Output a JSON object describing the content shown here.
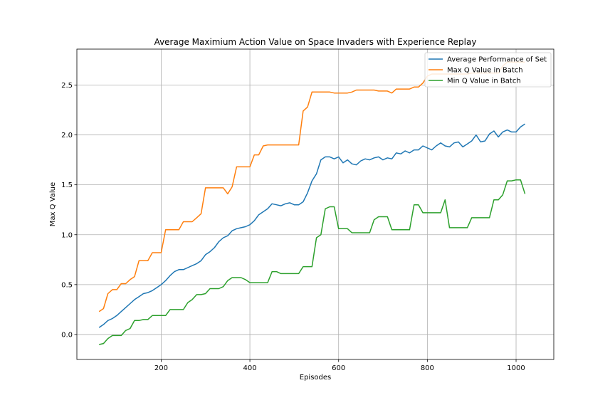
{
  "chart_data": {
    "type": "line",
    "title": "Average Maximium Action Value on Space Invaders with Experience Replay",
    "xlabel": "Episodes",
    "ylabel": "Max Q Value",
    "xlim": [
      10,
      1085
    ],
    "ylim": [
      -0.25,
      2.86
    ],
    "xticks": [
      200,
      400,
      600,
      800,
      1000
    ],
    "xtick_labels": [
      "200",
      "400",
      "600",
      "800",
      "1000"
    ],
    "yticks": [
      0.0,
      0.5,
      1.0,
      1.5,
      2.0,
      2.5
    ],
    "ytick_labels": [
      "0.0",
      "0.5",
      "1.0",
      "1.5",
      "2.0",
      "2.5"
    ],
    "grid": true,
    "legend_position": "top-right",
    "x": [
      60,
      70,
      80,
      90,
      100,
      110,
      120,
      130,
      140,
      150,
      160,
      170,
      180,
      190,
      200,
      210,
      220,
      230,
      240,
      250,
      260,
      270,
      280,
      290,
      300,
      310,
      320,
      330,
      340,
      350,
      360,
      370,
      380,
      390,
      400,
      410,
      420,
      430,
      440,
      450,
      460,
      470,
      480,
      490,
      500,
      510,
      520,
      530,
      540,
      550,
      560,
      570,
      580,
      590,
      600,
      610,
      620,
      630,
      640,
      650,
      660,
      670,
      680,
      690,
      700,
      710,
      720,
      730,
      740,
      750,
      760,
      770,
      780,
      790,
      800,
      810,
      820,
      830,
      840,
      850,
      860,
      870,
      880,
      890,
      900,
      910,
      920,
      930,
      940,
      950,
      960,
      970,
      980,
      990,
      1000,
      1010,
      1020
    ],
    "series": [
      {
        "name": "Average Performance of Set",
        "color": "#1f77b4",
        "values": [
          0.07,
          0.1,
          0.14,
          0.16,
          0.19,
          0.23,
          0.27,
          0.31,
          0.35,
          0.38,
          0.41,
          0.42,
          0.44,
          0.47,
          0.5,
          0.54,
          0.59,
          0.63,
          0.65,
          0.65,
          0.67,
          0.69,
          0.71,
          0.74,
          0.8,
          0.83,
          0.87,
          0.93,
          0.97,
          0.99,
          1.04,
          1.06,
          1.07,
          1.08,
          1.1,
          1.14,
          1.2,
          1.23,
          1.26,
          1.31,
          1.3,
          1.29,
          1.31,
          1.32,
          1.3,
          1.3,
          1.33,
          1.42,
          1.54,
          1.61,
          1.75,
          1.78,
          1.78,
          1.76,
          1.78,
          1.72,
          1.75,
          1.71,
          1.7,
          1.74,
          1.76,
          1.75,
          1.77,
          1.78,
          1.75,
          1.77,
          1.76,
          1.82,
          1.81,
          1.84,
          1.82,
          1.85,
          1.85,
          1.89,
          1.87,
          1.85,
          1.89,
          1.92,
          1.89,
          1.88,
          1.92,
          1.93,
          1.88,
          1.91,
          1.94,
          2.0,
          1.93,
          1.94,
          2.01,
          2.04,
          1.98,
          2.03,
          2.05,
          2.03,
          2.03,
          2.08,
          2.11
        ]
      },
      {
        "name": "Max Q Value in Batch",
        "color": "#ff7f0e",
        "values": [
          0.23,
          0.26,
          0.41,
          0.45,
          0.45,
          0.51,
          0.51,
          0.55,
          0.58,
          0.74,
          0.74,
          0.74,
          0.82,
          0.82,
          0.82,
          1.05,
          1.05,
          1.05,
          1.05,
          1.13,
          1.13,
          1.13,
          1.17,
          1.21,
          1.47,
          1.47,
          1.47,
          1.47,
          1.47,
          1.41,
          1.48,
          1.68,
          1.68,
          1.68,
          1.68,
          1.8,
          1.8,
          1.89,
          1.9,
          1.9,
          1.9,
          1.9,
          1.9,
          1.9,
          1.9,
          1.9,
          2.24,
          2.28,
          2.43,
          2.43,
          2.43,
          2.43,
          2.43,
          2.42,
          2.42,
          2.42,
          2.42,
          2.43,
          2.45,
          2.45,
          2.45,
          2.45,
          2.45,
          2.44,
          2.44,
          2.44,
          2.42,
          2.46,
          2.46,
          2.46,
          2.46,
          2.48,
          2.48,
          2.52,
          2.59,
          2.61,
          2.61,
          2.61,
          2.61,
          2.61,
          2.61,
          2.61,
          2.61,
          2.61,
          2.62,
          2.62,
          2.62,
          2.62,
          2.62,
          2.62,
          2.62,
          2.69,
          2.73,
          2.73,
          2.73,
          2.73,
          2.73
        ]
      },
      {
        "name": "Min Q Value in Batch",
        "color": "#2ca02c",
        "values": [
          -0.1,
          -0.09,
          -0.04,
          -0.01,
          -0.01,
          -0.01,
          0.04,
          0.06,
          0.14,
          0.14,
          0.15,
          0.15,
          0.19,
          0.19,
          0.19,
          0.19,
          0.25,
          0.25,
          0.25,
          0.25,
          0.32,
          0.35,
          0.4,
          0.4,
          0.41,
          0.46,
          0.46,
          0.46,
          0.48,
          0.54,
          0.57,
          0.57,
          0.57,
          0.55,
          0.52,
          0.52,
          0.52,
          0.52,
          0.52,
          0.63,
          0.63,
          0.61,
          0.61,
          0.61,
          0.61,
          0.61,
          0.68,
          0.68,
          0.68,
          0.97,
          1.0,
          1.26,
          1.28,
          1.28,
          1.06,
          1.06,
          1.06,
          1.02,
          1.02,
          1.02,
          1.02,
          1.02,
          1.15,
          1.18,
          1.18,
          1.18,
          1.05,
          1.05,
          1.05,
          1.05,
          1.05,
          1.3,
          1.3,
          1.22,
          1.22,
          1.22,
          1.22,
          1.22,
          1.35,
          1.07,
          1.07,
          1.07,
          1.07,
          1.07,
          1.17,
          1.17,
          1.17,
          1.17,
          1.17,
          1.35,
          1.35,
          1.4,
          1.54,
          1.54,
          1.55,
          1.55,
          1.41
        ]
      }
    ]
  }
}
